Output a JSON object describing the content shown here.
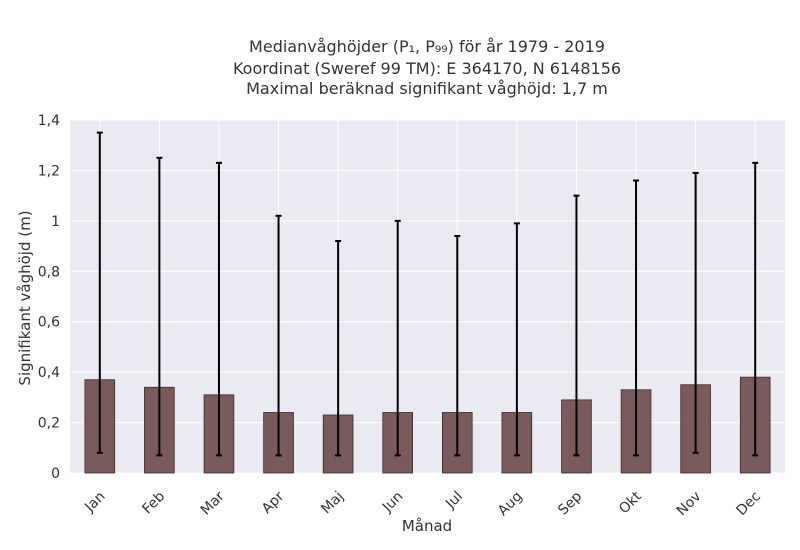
{
  "chart_data": {
    "type": "bar",
    "title_lines": [
      "Medianvåghöjder (P₁, P₉₉) för år 1979 - 2019",
      "Koordinat (Sweref 99 TM): E 364170, N 6148156",
      "Maximal beräknad signifikant våghöjd: 1,7 m"
    ],
    "xlabel": "Månad",
    "ylabel": "Signifikant våghöjd (m)",
    "categories": [
      "Jan",
      "Feb",
      "Mar",
      "Apr",
      "Maj",
      "Jun",
      "Jul",
      "Aug",
      "Sep",
      "Okt",
      "Nov",
      "Dec"
    ],
    "values": [
      0.37,
      0.34,
      0.31,
      0.24,
      0.23,
      0.24,
      0.24,
      0.24,
      0.29,
      0.33,
      0.35,
      0.38
    ],
    "error_low": [
      0.08,
      0.07,
      0.07,
      0.07,
      0.07,
      0.07,
      0.07,
      0.07,
      0.07,
      0.07,
      0.08,
      0.07
    ],
    "error_high": [
      1.35,
      1.25,
      1.23,
      1.02,
      0.92,
      1.0,
      0.94,
      0.99,
      1.1,
      1.16,
      1.19,
      1.23
    ],
    "ylim": [
      0,
      1.4
    ],
    "yticks": [
      0,
      0.2,
      0.4,
      0.6,
      0.8,
      1,
      1.2,
      1.4
    ],
    "ytick_labels": [
      "0",
      "0,2",
      "0,4",
      "0,6",
      "0,8",
      "1",
      "1,2",
      "1,4"
    ],
    "grid": true,
    "colors": {
      "bar": "#7a5a5a",
      "bar_edge": "#3a2a2a",
      "plot_background": "#eaeaf2",
      "grid": "#ffffff",
      "error_bar": "#000000"
    }
  }
}
